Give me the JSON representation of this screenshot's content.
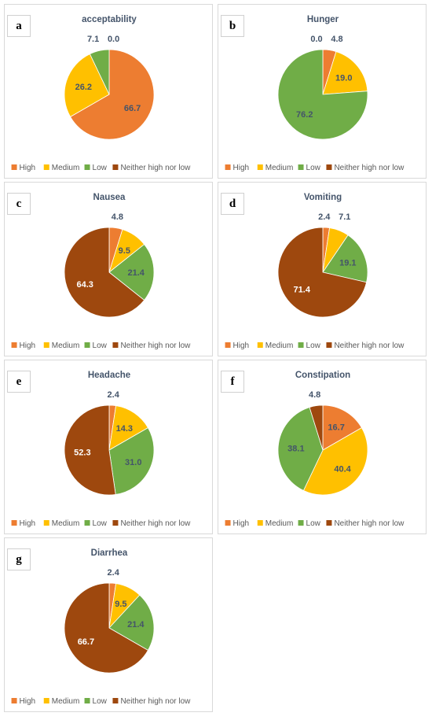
{
  "colors": {
    "High": "#ed7d31",
    "Medium": "#ffc000",
    "Low": "#70ad47",
    "Neither high nor low": "#9e480e",
    "outside_label": "#44546a",
    "inside_label": "#44546a",
    "inside_label_dark_slice": "#ffffff"
  },
  "chart_data": [
    {
      "panel": "a",
      "type": "pie",
      "title": "acceptability",
      "categories": [
        "High",
        "Medium",
        "Low",
        "Neither high nor low"
      ],
      "values": [
        66.7,
        26.2,
        7.1,
        0.0
      ],
      "legend": [
        "High",
        "Medium",
        "Low",
        "Neither high nor low"
      ],
      "legend_position": "bottom"
    },
    {
      "panel": "b",
      "type": "pie",
      "title": "Hunger",
      "categories": [
        "High",
        "Medium",
        "Low",
        "Neither high nor low"
      ],
      "values": [
        4.8,
        19.0,
        76.2,
        0.0
      ],
      "legend": [
        "High",
        "Medium",
        "Low",
        "Neither high nor low"
      ],
      "legend_position": "bottom"
    },
    {
      "panel": "c",
      "type": "pie",
      "title": "Nausea",
      "categories": [
        "High",
        "Medium",
        "Low",
        "Neither high nor low"
      ],
      "values": [
        4.8,
        9.5,
        21.4,
        64.3
      ],
      "legend": [
        "High",
        "Medium",
        "Low",
        "Neither high nor low"
      ],
      "legend_position": "bottom"
    },
    {
      "panel": "d",
      "type": "pie",
      "title": "Vomiting",
      "categories": [
        "High",
        "Medium",
        "Low",
        "Neither high nor low"
      ],
      "values": [
        2.4,
        7.1,
        19.1,
        71.4
      ],
      "legend": [
        "High",
        "Medium",
        "Low",
        "Neither high nor low"
      ],
      "legend_position": "bottom"
    },
    {
      "panel": "e",
      "type": "pie",
      "title": "Headache",
      "categories": [
        "High",
        "Medium",
        "Low",
        "Neither high nor low"
      ],
      "values": [
        2.4,
        14.3,
        31.0,
        52.3
      ],
      "legend": [
        "High",
        "Medium",
        "Low",
        "Neither high nor low"
      ],
      "legend_position": "bottom"
    },
    {
      "panel": "f",
      "type": "pie",
      "title": "Constipation",
      "categories": [
        "High",
        "Medium",
        "Low",
        "Neither high nor low"
      ],
      "values": [
        16.7,
        40.4,
        38.1,
        4.8
      ],
      "legend": [
        "High",
        "Medium",
        "Low",
        "Neither high nor low"
      ],
      "legend_position": "bottom"
    },
    {
      "panel": "g",
      "type": "pie",
      "title": "Diarrhea",
      "categories": [
        "High",
        "Medium",
        "Low",
        "Neither high nor low"
      ],
      "values": [
        2.4,
        9.5,
        21.4,
        66.7
      ],
      "legend": [
        "High",
        "Medium",
        "Low",
        "Neither high nor low"
      ],
      "legend_position": "bottom"
    }
  ]
}
